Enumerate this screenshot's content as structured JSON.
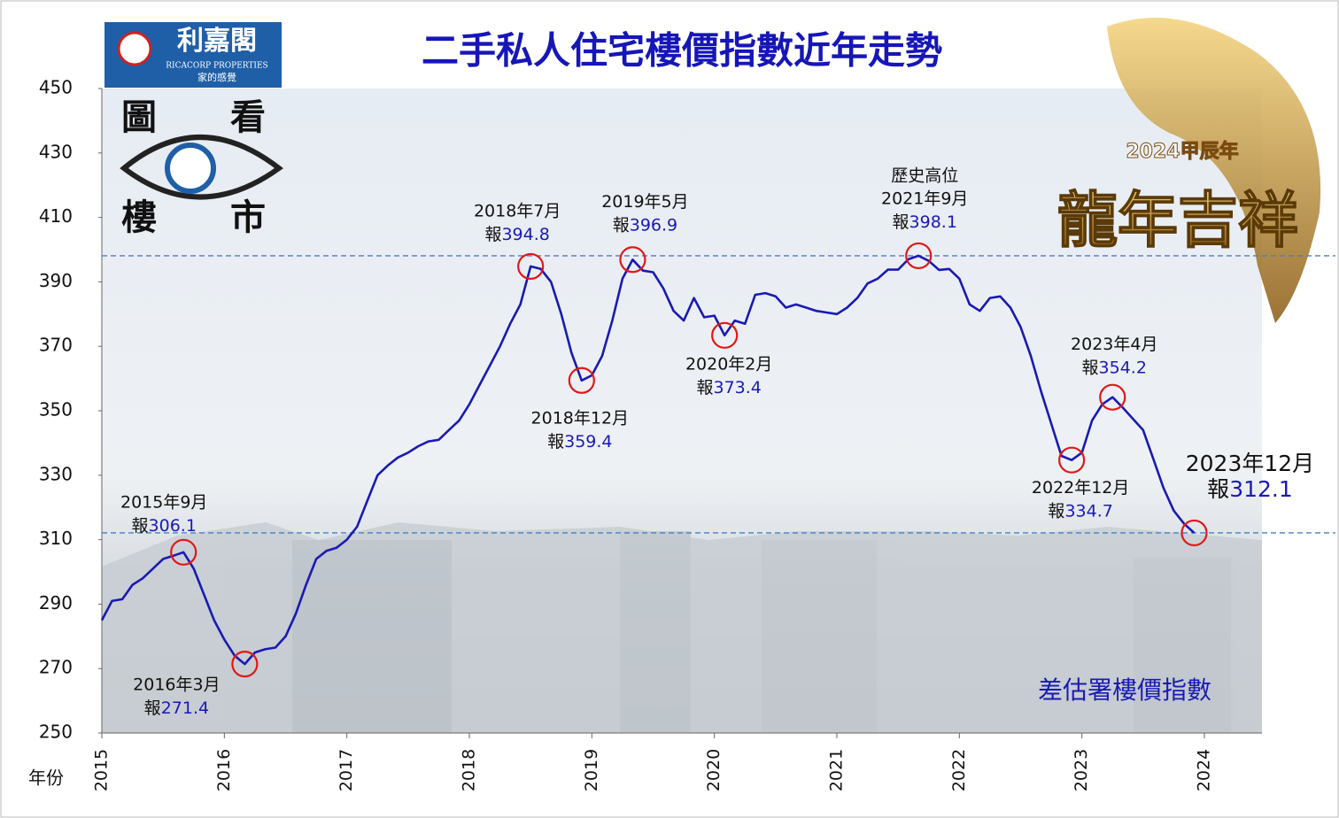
{
  "chart_data": {
    "type": "line",
    "title": "二手私人住宅樓價指數近年走勢",
    "x_label": "年份",
    "categories": [
      "2015",
      null,
      null,
      null,
      null,
      null,
      null,
      null,
      null,
      null,
      null,
      null,
      "2016",
      null,
      null,
      null,
      null,
      null,
      null,
      null,
      null,
      null,
      null,
      null,
      "2017",
      null,
      null,
      null,
      null,
      null,
      null,
      null,
      null,
      null,
      null,
      null,
      "2018",
      null,
      null,
      null,
      null,
      null,
      null,
      null,
      null,
      null,
      null,
      null,
      "2019",
      null,
      null,
      null,
      null,
      null,
      null,
      null,
      null,
      null,
      null,
      null,
      "2020",
      null,
      null,
      null,
      null,
      null,
      null,
      null,
      null,
      null,
      null,
      null,
      "2021",
      null,
      null,
      null,
      null,
      null,
      null,
      null,
      null,
      null,
      null,
      null,
      "2022",
      null,
      null,
      null,
      null,
      null,
      null,
      null,
      null,
      null,
      null,
      null,
      "2023",
      null,
      null,
      null,
      null,
      null,
      null,
      null,
      null,
      null,
      null,
      null,
      "2024"
    ],
    "series": [
      {
        "name": "差估署樓價指數",
        "color": "#1a1ab4",
        "values": [
          285,
          291,
          291.5,
          296,
          298,
          301,
          304,
          305,
          306.1,
          301,
          293,
          285,
          279,
          274,
          271.4,
          275,
          276,
          276.5,
          280,
          287,
          296,
          304,
          306.5,
          307.5,
          310,
          314,
          322,
          330,
          333,
          335.5,
          337,
          339,
          340.5,
          341,
          344,
          347,
          352,
          358,
          364,
          370,
          377,
          383,
          394.8,
          394,
          390,
          380,
          368,
          359.4,
          361,
          367,
          378,
          391,
          396.9,
          393.5,
          393,
          388,
          381,
          378,
          385,
          379,
          379.5,
          373.4,
          378,
          377,
          386,
          386.5,
          385.5,
          382,
          383,
          382,
          381,
          380.5,
          380,
          382,
          385,
          389.5,
          391,
          393.8,
          393.8,
          397,
          398.1,
          396.5,
          393.7,
          394,
          391,
          383,
          381,
          385,
          385.5,
          382,
          376,
          367,
          356,
          346,
          336,
          334.7,
          337,
          347,
          352,
          354.2,
          351,
          347.5,
          344,
          335,
          326,
          319,
          315,
          312.1,
          null
        ]
      }
    ],
    "ylim": [
      250,
      450
    ],
    "yticks": [
      250,
      270,
      290,
      310,
      330,
      350,
      370,
      390,
      410,
      430,
      450
    ],
    "reference_lines": [
      398.1,
      312.1
    ],
    "annotations": [
      {
        "text": [
          "2015年9月"
        ],
        "prefix": "報",
        "value": 306.1
      },
      {
        "text": [
          "2016年3月"
        ],
        "prefix": "報",
        "value": 271.4
      },
      {
        "text": [
          "2018年7月"
        ],
        "prefix": "報",
        "value": 394.8
      },
      {
        "text": [
          "2018年12月"
        ],
        "prefix": "報",
        "value": 359.4
      },
      {
        "text": [
          "2019年5月"
        ],
        "prefix": "報",
        "value": 396.9
      },
      {
        "text": [
          "2020年2月"
        ],
        "prefix": "報",
        "value": 373.4
      },
      {
        "text": [
          "歷史高位",
          "2021年9月"
        ],
        "prefix": "報",
        "value": 398.1
      },
      {
        "text": [
          "2022年12月"
        ],
        "prefix": "報",
        "value": 334.7
      },
      {
        "text": [
          "2023年4月"
        ],
        "prefix": "報",
        "value": 354.2
      },
      {
        "text": [
          "2023年12月"
        ],
        "prefix": "報",
        "value": 312.1
      }
    ]
  },
  "logo": {
    "name": "利嘉閣",
    "english": "RICACORP PROPERTIES",
    "slogan": "家的感覺",
    "badge": [
      "圖",
      "看",
      "樓",
      "市"
    ]
  },
  "banner": {
    "year": "2024甲辰年",
    "greeting": "龍年吉祥"
  }
}
